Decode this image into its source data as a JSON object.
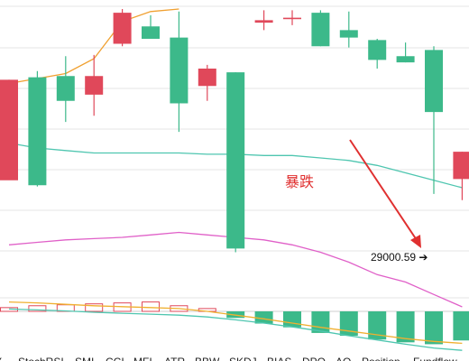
{
  "colors": {
    "up": "#e0485a",
    "down": "#3cb98a",
    "grid": "#e6e6e6",
    "ma_upper": "#f0a030",
    "ma_teal": "#4fc6b0",
    "ma_pink": "#e060c8",
    "macd_line": "#f0b030",
    "annotation": "#e03030"
  },
  "chart_data": {
    "type": "candlestick",
    "candles": [
      {
        "open": 0.31,
        "close": 0.715,
        "high": 0.715,
        "low": 0.315
      },
      {
        "open": 0.725,
        "close": 0.29,
        "high": 0.75,
        "low": 0.285
      },
      {
        "open": 0.73,
        "close": 0.63,
        "high": 0.81,
        "low": 0.545
      },
      {
        "open": 0.655,
        "close": 0.73,
        "high": 0.815,
        "low": 0.57
      },
      {
        "open": 0.86,
        "close": 0.985,
        "high": 1.0,
        "low": 0.85
      },
      {
        "open": 0.93,
        "close": 0.88,
        "high": 0.975,
        "low": 0.88
      },
      {
        "open": 0.885,
        "close": 0.62,
        "high": 0.99,
        "low": 0.505
      },
      {
        "open": 0.69,
        "close": 0.76,
        "high": 0.775,
        "low": 0.63
      },
      {
        "open": 0.745,
        "close": 0.035,
        "high": 0.745,
        "low": 0.02
      },
      {
        "open": 0.945,
        "close": 0.955,
        "high": 0.995,
        "low": 0.915
      },
      {
        "open": 0.96,
        "close": 0.965,
        "high": 0.995,
        "low": 0.935
      },
      {
        "open": 0.985,
        "close": 0.85,
        "high": 0.995,
        "low": 0.85
      },
      {
        "open": 0.915,
        "close": 0.885,
        "high": 0.99,
        "low": 0.845
      },
      {
        "open": 0.875,
        "close": 0.795,
        "high": 0.88,
        "low": 0.76
      },
      {
        "open": 0.81,
        "close": 0.785,
        "high": 0.865,
        "low": 0.785
      },
      {
        "open": 0.835,
        "close": 0.585,
        "high": 0.85,
        "low": 0.255
      },
      {
        "open": 0.315,
        "close": 0.425,
        "high": 0.425,
        "low": 0.23
      }
    ],
    "ma_upper": [
      0.7,
      0.72,
      0.74,
      0.8,
      0.95,
      0.99,
      1.0
    ],
    "ma_teal": [
      0.46,
      0.44,
      0.43,
      0.42,
      0.42,
      0.42,
      0.42,
      0.415,
      0.415,
      0.41,
      0.41,
      0.4,
      0.39,
      0.37,
      0.34,
      0.31,
      0.28
    ],
    "ma_pink": [
      0.05,
      0.06,
      0.07,
      0.075,
      0.08,
      0.09,
      0.1,
      0.09,
      0.08,
      0.07,
      0.05,
      0.02,
      -0.02,
      -0.07,
      -0.1,
      -0.15,
      -0.2
    ],
    "indicator": {
      "bars": [
        0.08,
        0.12,
        0.14,
        0.16,
        0.18,
        0.2,
        0.12,
        0.06,
        -0.14,
        -0.26,
        -0.34,
        -0.46,
        -0.52,
        -0.6,
        -0.66,
        -0.7,
        -0.62
      ],
      "line_a": [
        0.2,
        0.18,
        0.15,
        0.12,
        0.1,
        0.08,
        0.06,
        0.0,
        -0.08,
        -0.16,
        -0.25,
        -0.34,
        -0.42,
        -0.5,
        -0.58,
        -0.64,
        -0.68
      ],
      "line_b": [
        0.05,
        0.03,
        0.01,
        -0.02,
        -0.04,
        -0.06,
        -0.08,
        -0.12,
        -0.18,
        -0.25,
        -0.33,
        -0.42,
        -0.52,
        -0.61,
        -0.7,
        -0.78,
        -0.83
      ]
    },
    "annotations": [
      {
        "kind": "text",
        "text": "暴跌"
      },
      {
        "kind": "price",
        "text": "29000.59 ➔"
      }
    ],
    "indicator_tabs": [
      "Y",
      "StochRSI",
      "SMI",
      "CCI",
      "MFI",
      "ATR",
      "BBW",
      "SKDJ",
      "BIAS",
      "DPO",
      "AO",
      "Position",
      "Fundflow"
    ]
  }
}
